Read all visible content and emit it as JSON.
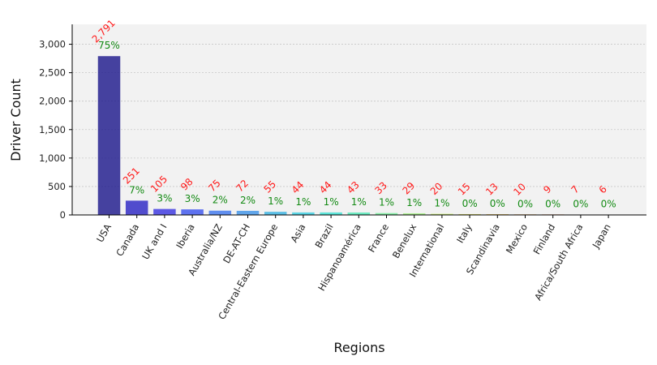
{
  "chart_data": {
    "type": "bar",
    "xlabel": "Regions",
    "ylabel": "Driver Count",
    "ylim": [
      0,
      3350
    ],
    "yticks": [
      0,
      500,
      1000,
      1500,
      2000,
      2500,
      3000
    ],
    "ytick_labels": [
      "0",
      "500",
      "1,000",
      "1,500",
      "2,000",
      "2,500",
      "3,000"
    ],
    "grid": "horizontal dotted",
    "categories": [
      "USA",
      "Canada",
      "UK and I",
      "Iberia",
      "Australia/NZ",
      "DE-AT-CH",
      "Central-Eastern Europe",
      "Asia",
      "Brazil",
      "Hispanoamérica",
      "France",
      "Benelux",
      "International",
      "Italy",
      "Scandinavia",
      "Mexico",
      "Finland",
      "Africa/South Africa",
      "Japan"
    ],
    "values": [
      2791,
      251,
      105,
      98,
      75,
      72,
      55,
      44,
      44,
      43,
      33,
      29,
      20,
      15,
      13,
      10,
      9,
      7,
      6
    ],
    "value_labels": [
      "2,791",
      "251",
      "105",
      "98",
      "75",
      "72",
      "55",
      "44",
      "44",
      "43",
      "33",
      "29",
      "20",
      "15",
      "13",
      "10",
      "9",
      "7",
      "6"
    ],
    "percent_labels": [
      "75%",
      "7%",
      "3%",
      "3%",
      "2%",
      "2%",
      "1%",
      "1%",
      "1%",
      "1%",
      "1%",
      "1%",
      "1%",
      "0%",
      "0%",
      "0%",
      "0%",
      "0%",
      "0%"
    ],
    "colors": [
      "#1f1a8c",
      "#2d27c4",
      "#3b36e0",
      "#3d55ee",
      "#3f78ee",
      "#3f94e8",
      "#38b2e2",
      "#38cde0",
      "#3ae0d2",
      "#4ee6b4",
      "#6eea94",
      "#9aec78",
      "#c2ea60",
      "#e0e050",
      "#f0c040",
      "#f09a30",
      "#e86a24",
      "#d8401c",
      "#b01414"
    ],
    "value_label_color": "#ff1a1a",
    "percent_label_color": "#138a13",
    "plot_background": "#f2f2f2"
  }
}
